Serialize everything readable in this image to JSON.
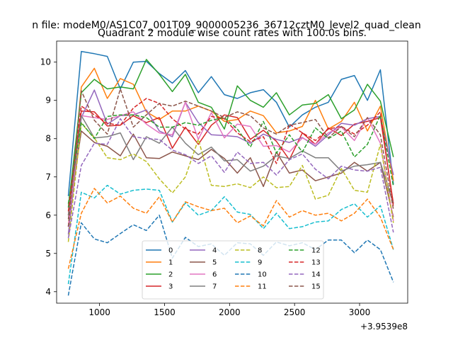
{
  "chart_data": {
    "type": "line",
    "suptitle": "n file: modeM0/AS1C07_001T09_9000005236_36712cztM0_level2_quad_clean",
    "title": "Quadrant 2 module wise count rates with 100.0s bins.",
    "xlabel": "",
    "ylabel": "",
    "x_offset_label": "+3.9539e8",
    "xlim": [
      670,
      3370
    ],
    "ylim": [
      3.7,
      10.55
    ],
    "xticks": [
      1000,
      1500,
      2000,
      2500,
      3000
    ],
    "yticks": [
      4,
      5,
      6,
      7,
      8,
      9,
      10
    ],
    "legend_position": "lower center",
    "x": [
      760,
      860,
      960,
      1060,
      1160,
      1260,
      1360,
      1460,
      1560,
      1660,
      1760,
      1860,
      1960,
      2060,
      2160,
      2260,
      2360,
      2460,
      2560,
      2660,
      2760,
      2860,
      2960,
      3060,
      3160,
      3260
    ],
    "series": [
      {
        "name": "0",
        "color": "#1f77b4",
        "dash": "solid",
        "values": [
          6.5,
          10.28,
          10.22,
          10.15,
          9.3,
          10.0,
          10.02,
          9.7,
          9.45,
          9.78,
          9.2,
          9.62,
          9.15,
          9.05,
          9.2,
          9.28,
          8.95,
          8.3,
          8.62,
          8.82,
          8.95,
          9.55,
          9.65,
          9.0,
          9.8,
          6.8
        ]
      },
      {
        "name": "1",
        "color": "#ff7f0e",
        "dash": "solid",
        "values": [
          5.7,
          9.35,
          9.84,
          9.05,
          9.57,
          9.42,
          8.7,
          8.5,
          8.72,
          8.72,
          8.85,
          8.72,
          8.45,
          8.5,
          8.72,
          8.6,
          8.15,
          8.2,
          8.32,
          9.0,
          8.25,
          8.45,
          8.95,
          8.2,
          8.85,
          6.9
        ]
      },
      {
        "name": "2",
        "color": "#2ca02c",
        "dash": "solid",
        "values": [
          6.2,
          9.2,
          9.55,
          9.3,
          9.35,
          9.3,
          10.07,
          9.68,
          9.23,
          9.68,
          8.95,
          8.82,
          8.25,
          9.38,
          9.0,
          8.82,
          9.2,
          8.62,
          8.88,
          8.92,
          9.15,
          8.52,
          8.75,
          9.42,
          8.98,
          7.52
        ]
      },
      {
        "name": "3",
        "color": "#d62728",
        "dash": "solid",
        "values": [
          6.0,
          8.72,
          8.7,
          8.33,
          8.35,
          8.6,
          8.42,
          8.55,
          7.75,
          8.3,
          7.85,
          8.35,
          8.62,
          8.55,
          7.98,
          8.22,
          7.93,
          7.45,
          8.15,
          7.85,
          8.28,
          8.08,
          8.38,
          8.45,
          8.55,
          6.3
        ]
      },
      {
        "name": "4",
        "color": "#9467bd",
        "dash": "solid",
        "values": [
          5.5,
          8.55,
          9.27,
          8.38,
          8.6,
          8.62,
          8.75,
          8.2,
          8.05,
          8.95,
          8.42,
          8.1,
          8.08,
          8.05,
          7.88,
          8.12,
          7.98,
          7.9,
          8.03,
          7.8,
          8.1,
          8.4,
          8.35,
          8.52,
          8.58,
          7.05
        ]
      },
      {
        "name": "5",
        "color": "#8c564b",
        "dash": "solid",
        "values": [
          5.9,
          8.2,
          7.9,
          7.8,
          7.55,
          8.12,
          7.5,
          7.48,
          7.65,
          7.55,
          7.45,
          7.72,
          7.48,
          7.1,
          7.5,
          6.75,
          7.65,
          7.1,
          7.18,
          6.9,
          7.0,
          7.1,
          7.38,
          7.15,
          7.38,
          5.95
        ]
      },
      {
        "name": "6",
        "color": "#e377c2",
        "dash": "solid",
        "values": [
          5.7,
          8.6,
          8.55,
          8.5,
          8.6,
          8.7,
          8.38,
          8.15,
          8.1,
          8.95,
          7.98,
          8.68,
          8.02,
          8.38,
          8.32,
          7.8,
          7.82,
          7.65,
          8.02,
          7.85,
          8.15,
          8.3,
          7.95,
          8.55,
          7.88,
          5.85
        ]
      },
      {
        "name": "7",
        "color": "#7f7f7f",
        "dash": "solid",
        "values": [
          6.0,
          8.6,
          8.02,
          8.05,
          8.15,
          7.45,
          8.05,
          7.88,
          8.3,
          7.88,
          7.58,
          7.78,
          7.42,
          7.45,
          7.15,
          7.28,
          7.55,
          7.48,
          7.68,
          7.5,
          7.5,
          7.15,
          7.28,
          7.32,
          7.38,
          6.3
        ]
      },
      {
        "name": "8",
        "color": "#bcbd22",
        "dash": "dashed",
        "values": [
          5.3,
          8.4,
          8.02,
          7.5,
          7.45,
          7.6,
          7.4,
          6.95,
          6.58,
          7.0,
          7.98,
          6.78,
          6.75,
          6.82,
          6.72,
          7.0,
          6.72,
          6.75,
          7.3,
          6.42,
          6.52,
          7.22,
          6.65,
          6.6,
          7.85,
          5.8
        ]
      },
      {
        "name": "9",
        "color": "#17becf",
        "dash": "dashed",
        "values": [
          4.2,
          6.6,
          6.45,
          6.78,
          6.55,
          6.65,
          6.68,
          6.65,
          5.82,
          6.32,
          6.0,
          6.12,
          6.48,
          6.08,
          6.02,
          5.65,
          6.05,
          5.65,
          5.7,
          5.82,
          5.85,
          6.15,
          6.3,
          5.95,
          6.25,
          5.1
        ]
      },
      {
        "name": "10",
        "color": "#1f77b4",
        "dash": "dashed",
        "values": [
          3.9,
          5.8,
          5.38,
          5.28,
          5.52,
          5.75,
          5.6,
          6.0,
          4.88,
          5.42,
          5.18,
          5.25,
          4.95,
          5.28,
          5.25,
          4.95,
          5.3,
          5.2,
          5.28,
          5.1,
          5.35,
          5.35,
          5.02,
          5.35,
          5.1,
          4.25
        ]
      },
      {
        "name": "11",
        "color": "#ff7f0e",
        "dash": "dashed",
        "values": [
          4.6,
          6.05,
          6.7,
          6.32,
          6.5,
          6.18,
          6.05,
          6.48,
          5.82,
          6.35,
          6.22,
          6.12,
          6.18,
          5.8,
          5.98,
          5.72,
          6.38,
          5.95,
          6.12,
          6.0,
          6.05,
          5.85,
          6.05,
          6.42,
          5.95,
          5.1
        ]
      },
      {
        "name": "12",
        "color": "#2ca02c",
        "dash": "dashed",
        "values": [
          6.3,
          8.42,
          8.0,
          8.58,
          8.62,
          8.62,
          8.55,
          8.3,
          8.3,
          8.42,
          8.35,
          8.48,
          8.55,
          8.25,
          7.78,
          8.45,
          7.62,
          8.1,
          7.65,
          8.28,
          8.0,
          8.2,
          7.52,
          7.85,
          8.62,
          6.75
        ]
      },
      {
        "name": "13",
        "color": "#d62728",
        "dash": "dashed",
        "values": [
          6.1,
          8.85,
          8.62,
          8.4,
          8.35,
          8.8,
          9.05,
          8.92,
          8.52,
          8.25,
          8.12,
          8.58,
          8.52,
          8.15,
          7.92,
          8.05,
          7.35,
          8.38,
          8.15,
          7.95,
          8.25,
          8.32,
          8.12,
          8.35,
          8.7,
          6.22
        ]
      },
      {
        "name": "14",
        "color": "#9467bd",
        "dash": "dashed",
        "values": [
          5.4,
          7.3,
          7.88,
          7.85,
          8.52,
          8.05,
          8.0,
          7.98,
          7.7,
          7.58,
          7.35,
          7.55,
          7.12,
          7.65,
          7.35,
          7.38,
          7.05,
          7.45,
          7.6,
          7.2,
          6.95,
          7.28,
          7.18,
          7.15,
          7.25,
          5.55
        ]
      },
      {
        "name": "15",
        "color": "#8c564b",
        "dash": "dashed",
        "values": [
          5.7,
          9.25,
          8.48,
          8.12,
          9.3,
          8.3,
          8.62,
          8.92,
          8.85,
          8.98,
          8.85,
          8.72,
          8.55,
          8.7,
          8.6,
          8.28,
          8.12,
          8.35,
          8.42,
          8.5,
          8.02,
          8.32,
          8.05,
          8.55,
          8.1,
          6.15
        ]
      }
    ]
  }
}
